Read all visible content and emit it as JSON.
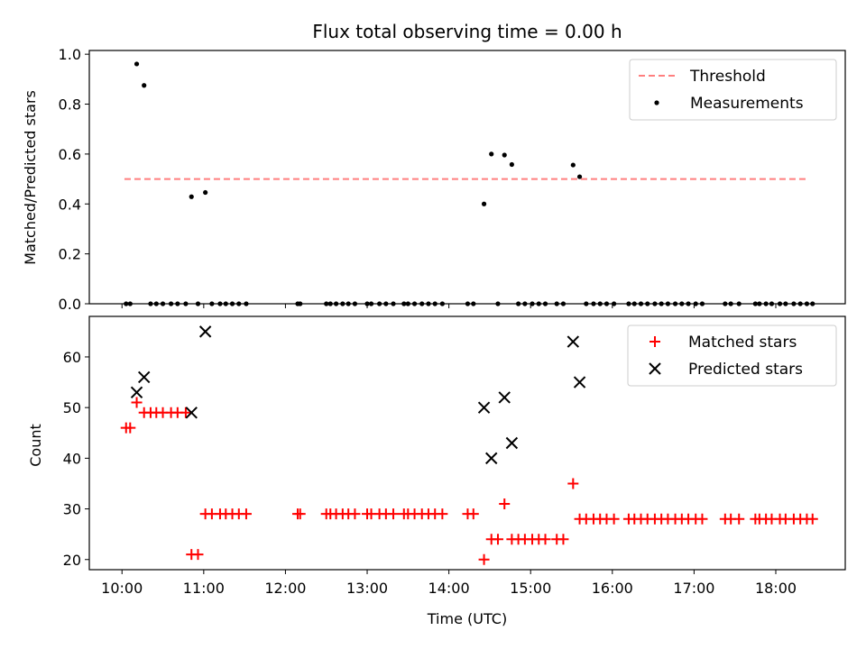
{
  "chart_data": [
    {
      "type": "scatter",
      "title": "Flux total observing time = 0.00 h",
      "xlabel": "",
      "ylabel": "Matched/Predicted stars",
      "xlim": [
        9.6,
        18.85
      ],
      "ylim": [
        0.0,
        1.015
      ],
      "yticks": [
        0.0,
        0.2,
        0.4,
        0.6,
        0.8,
        1.0
      ],
      "ytick_labels": [
        "0.0",
        "0.2",
        "0.4",
        "0.6",
        "0.8",
        "1.0"
      ],
      "legend_position": "top-right",
      "grid": false,
      "threshold": {
        "name": "Threshold",
        "value": 0.5,
        "x_range": [
          10.03,
          18.4
        ],
        "color": "#ff7f7f",
        "style": "dashed"
      },
      "series": [
        {
          "name": "Measurements",
          "marker": "dot",
          "color": "#000000",
          "x": [
            10.05,
            10.1,
            10.18,
            10.27,
            10.35,
            10.42,
            10.5,
            10.6,
            10.68,
            10.78,
            10.85,
            10.93,
            11.02,
            11.1,
            11.2,
            11.27,
            11.35,
            11.43,
            11.52,
            12.15,
            12.18,
            12.5,
            12.55,
            12.62,
            12.7,
            12.77,
            12.85,
            13.0,
            13.05,
            13.15,
            13.23,
            13.32,
            13.45,
            13.5,
            13.58,
            13.67,
            13.75,
            13.83,
            13.92,
            14.23,
            14.3,
            14.43,
            14.52,
            14.6,
            14.68,
            14.77,
            14.85,
            14.93,
            15.02,
            15.1,
            15.18,
            15.32,
            15.4,
            15.52,
            15.6,
            15.68,
            15.77,
            15.85,
            15.93,
            16.02,
            16.2,
            16.27,
            16.35,
            16.43,
            16.52,
            16.6,
            16.68,
            16.77,
            16.85,
            16.93,
            17.02,
            17.1,
            17.38,
            17.45,
            17.55,
            17.75,
            17.8,
            17.88,
            17.95,
            18.05,
            18.12,
            18.22,
            18.3,
            18.38,
            18.45
          ],
          "y": [
            0,
            0,
            0.961,
            0.875,
            0,
            0,
            0,
            0,
            0,
            0,
            0.429,
            0,
            0.446,
            0,
            0,
            0,
            0,
            0,
            0,
            0,
            0,
            0,
            0,
            0,
            0,
            0,
            0,
            0,
            0,
            0,
            0,
            0,
            0,
            0,
            0,
            0,
            0,
            0,
            0,
            0,
            0,
            0.4,
            0.6,
            0,
            0.596,
            0.558,
            0,
            0,
            0,
            0,
            0,
            0,
            0,
            0.556,
            0.509,
            0,
            0,
            0,
            0,
            0,
            0,
            0,
            0,
            0,
            0,
            0,
            0,
            0,
            0,
            0,
            0,
            0,
            0,
            0,
            0,
            0,
            0,
            0,
            0,
            0,
            0,
            0,
            0,
            0,
            0
          ]
        }
      ]
    },
    {
      "type": "scatter",
      "title": "",
      "xlabel": "Time (UTC)",
      "ylabel": "Count",
      "xlim": [
        9.6,
        18.85
      ],
      "ylim": [
        18,
        68
      ],
      "yticks": [
        20,
        30,
        40,
        50,
        60
      ],
      "ytick_labels": [
        "20",
        "30",
        "40",
        "50",
        "60"
      ],
      "xticks": [
        10,
        11,
        12,
        13,
        14,
        15,
        16,
        17,
        18
      ],
      "xtick_labels": [
        "10:00",
        "11:00",
        "12:00",
        "13:00",
        "14:00",
        "15:00",
        "16:00",
        "17:00",
        "18:00"
      ],
      "legend_position": "top-right",
      "grid": false,
      "series": [
        {
          "name": "Matched stars",
          "marker": "plus",
          "color": "#ff0000",
          "x": [
            10.05,
            10.1,
            10.18,
            10.27,
            10.35,
            10.42,
            10.5,
            10.6,
            10.68,
            10.78,
            10.85,
            10.93,
            11.02,
            11.1,
            11.2,
            11.27,
            11.35,
            11.43,
            11.52,
            12.15,
            12.18,
            12.5,
            12.55,
            12.62,
            12.7,
            12.77,
            12.85,
            13.0,
            13.05,
            13.15,
            13.23,
            13.32,
            13.45,
            13.5,
            13.58,
            13.67,
            13.75,
            13.83,
            13.92,
            14.23,
            14.3,
            14.43,
            14.52,
            14.6,
            14.68,
            14.77,
            14.85,
            14.93,
            15.02,
            15.1,
            15.18,
            15.32,
            15.4,
            15.52,
            15.6,
            15.68,
            15.77,
            15.85,
            15.93,
            16.02,
            16.2,
            16.27,
            16.35,
            16.43,
            16.52,
            16.6,
            16.68,
            16.77,
            16.85,
            16.93,
            17.02,
            17.1,
            17.38,
            17.45,
            17.55,
            17.75,
            17.8,
            17.88,
            17.95,
            18.05,
            18.12,
            18.22,
            18.3,
            18.38,
            18.45
          ],
          "y": [
            46,
            46,
            51,
            49,
            49,
            49,
            49,
            49,
            49,
            49,
            21,
            21,
            29,
            29,
            29,
            29,
            29,
            29,
            29,
            29,
            29,
            29,
            29,
            29,
            29,
            29,
            29,
            29,
            29,
            29,
            29,
            29,
            29,
            29,
            29,
            29,
            29,
            29,
            29,
            29,
            29,
            20,
            24,
            24,
            31,
            24,
            24,
            24,
            24,
            24,
            24,
            24,
            24,
            35,
            28,
            28,
            28,
            28,
            28,
            28,
            28,
            28,
            28,
            28,
            28,
            28,
            28,
            28,
            28,
            28,
            28,
            28,
            28,
            28,
            28,
            28,
            28,
            28,
            28,
            28,
            28,
            28,
            28,
            28,
            28
          ]
        },
        {
          "name": "Predicted stars",
          "marker": "x",
          "color": "#000000",
          "x": [
            10.18,
            10.27,
            10.85,
            11.02,
            14.43,
            14.52,
            14.68,
            14.77,
            15.52,
            15.6
          ],
          "y": [
            53,
            56,
            49,
            65,
            50,
            40,
            52,
            43,
            63,
            55
          ]
        }
      ]
    }
  ]
}
